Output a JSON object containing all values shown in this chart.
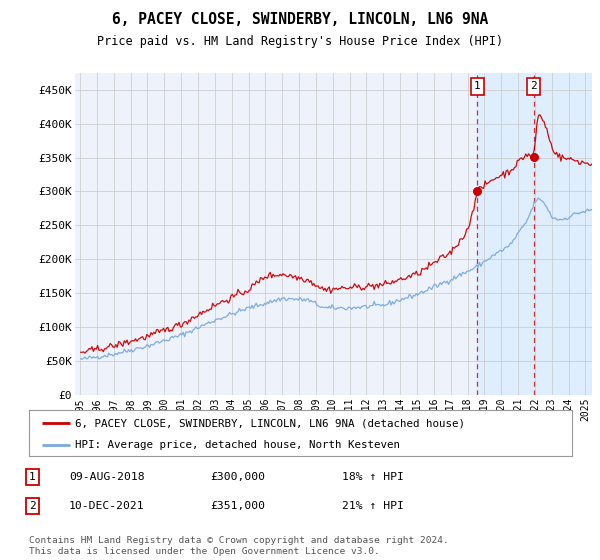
{
  "title": "6, PACEY CLOSE, SWINDERBY, LINCOLN, LN6 9NA",
  "subtitle": "Price paid vs. HM Land Registry's House Price Index (HPI)",
  "bg_color": "#ffffff",
  "plot_bg_color": "#eef2fb",
  "grid_color": "#c8c8c8",
  "red_color": "#cc0000",
  "blue_color": "#7aaadd",
  "sale1_date": "09-AUG-2018",
  "sale1_price": 300000,
  "sale1_label": "18% ↑ HPI",
  "sale1_x": 2018.583,
  "sale2_date": "10-DEC-2021",
  "sale2_price": 351000,
  "sale2_label": "21% ↑ HPI",
  "sale2_x": 2021.917,
  "ylim": [
    0,
    475000
  ],
  "xlim": [
    1994.7,
    2025.4
  ],
  "yticks": [
    0,
    50000,
    100000,
    150000,
    200000,
    250000,
    300000,
    350000,
    400000,
    450000
  ],
  "xtick_years": [
    1995,
    1996,
    1997,
    1998,
    1999,
    2000,
    2001,
    2002,
    2003,
    2004,
    2005,
    2006,
    2007,
    2008,
    2009,
    2010,
    2011,
    2012,
    2013,
    2014,
    2015,
    2016,
    2017,
    2018,
    2019,
    2020,
    2021,
    2022,
    2023,
    2024,
    2025
  ],
  "legend_label1": "6, PACEY CLOSE, SWINDERBY, LINCOLN, LN6 9NA (detached house)",
  "legend_label2": "HPI: Average price, detached house, North Kesteven",
  "footnote": "Contains HM Land Registry data © Crown copyright and database right 2024.\nThis data is licensed under the Open Government Licence v3.0.",
  "shaded_region_start": 2018.583,
  "shaded_region_end": 2025.4,
  "shaded_color": "#ddeeff"
}
